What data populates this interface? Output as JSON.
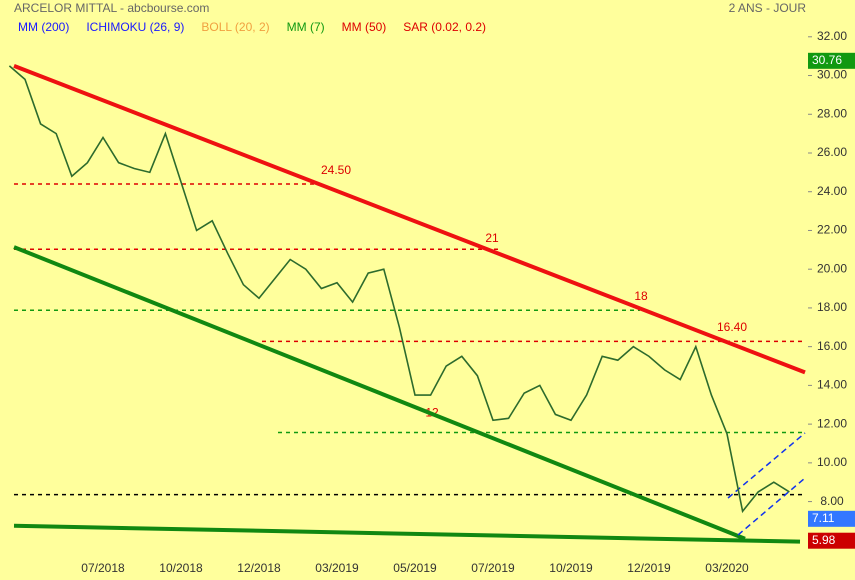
{
  "chart_data": {
    "type": "line",
    "title": "ARCELOR MITTAL - abcbourse.com",
    "period": "2 ANS - JOUR",
    "indicators": [
      {
        "name": "MM (200)",
        "color": "#1a1aff"
      },
      {
        "name": "ICHIMOKU (26, 9)",
        "color": "#1a1aff"
      },
      {
        "name": "BOLL (20, 2)",
        "color": "#f0a040"
      },
      {
        "name": "MM (7)",
        "color": "#119911"
      },
      {
        "name": "MM (50)",
        "color": "#dd0000"
      },
      {
        "name": "SAR (0.02, 0.2)",
        "color": "#dd0000"
      }
    ],
    "categories": [
      null,
      null,
      null,
      null,
      null,
      null,
      "07/2018",
      null,
      null,
      null,
      null,
      "10/2018",
      null,
      null,
      null,
      null,
      "12/2018",
      null,
      null,
      null,
      null,
      "03/2019",
      null,
      null,
      null,
      null,
      "05/2019",
      null,
      null,
      null,
      null,
      "07/2019",
      null,
      null,
      null,
      null,
      "10/2019",
      null,
      null,
      null,
      null,
      "12/2019",
      null,
      null,
      null,
      null,
      "03/2020",
      null,
      null,
      null,
      null
    ],
    "series": [
      {
        "color": "#2d6b2d",
        "values": [
          30.5,
          29.8,
          27.5,
          27.0,
          24.8,
          25.5,
          26.8,
          25.5,
          25.2,
          25.0,
          27.0,
          24.5,
          22.0,
          22.5,
          20.8,
          19.2,
          18.5,
          19.5,
          20.5,
          20.0,
          19.0,
          19.3,
          18.3,
          19.8,
          20.0,
          17.0,
          13.5,
          13.5,
          15.0,
          15.5,
          14.5,
          12.2,
          12.3,
          13.6,
          14.0,
          12.5,
          12.2,
          13.5,
          15.5,
          15.3,
          16.0,
          15.5,
          14.8,
          14.3,
          16.0,
          13.5,
          11.5,
          7.5,
          8.5,
          9.0,
          8.5
        ]
      }
    ],
    "ylim": [
      5.5,
      33.9
    ],
    "yticks": [
      {
        "value": 8,
        "label": "8.00"
      },
      {
        "value": 10,
        "label": "10.00"
      },
      {
        "value": 12,
        "label": "12.00"
      },
      {
        "value": 14,
        "label": "14.00"
      },
      {
        "value": 16,
        "label": "16.00"
      },
      {
        "value": 18,
        "label": "18.00"
      },
      {
        "value": 20,
        "label": "20.00"
      },
      {
        "value": 22,
        "label": "22.00"
      },
      {
        "value": 24,
        "label": "24.00"
      },
      {
        "value": 26,
        "label": "26.00"
      },
      {
        "value": 28,
        "label": "28.00"
      },
      {
        "value": 30,
        "label": "30.00"
      },
      {
        "value": 32,
        "label": "32.00"
      }
    ],
    "levels": [
      {
        "value": 24.4,
        "color": "#dd0000"
      },
      {
        "value": 21.03,
        "color": "#dd0000"
      },
      {
        "value": 17.88,
        "color": "#119911"
      },
      {
        "value": 16.27,
        "color": "#dd0000"
      },
      {
        "value": 11.57,
        "color": "#119911"
      },
      {
        "value": 8.36,
        "color": "#000000"
      }
    ],
    "level_labels": [
      {
        "value": 24.5,
        "label": "24.50"
      },
      {
        "value": 21,
        "label": "21"
      },
      {
        "value": 18,
        "label": "18"
      },
      {
        "value": 16.4,
        "label": "16.40"
      },
      {
        "value": 12,
        "label": "12"
      }
    ],
    "trendlines": [
      {
        "color": "#ee1111",
        "values": [
          30.5,
          14.67
        ]
      },
      {
        "color": "#118811",
        "values": [
          21.14,
          6.08
        ]
      },
      {
        "color": "#118811",
        "values": [
          6.75,
          5.93
        ]
      }
    ],
    "price_markers": [
      {
        "value": 30.76,
        "color": "#119911"
      },
      {
        "value": 7.11,
        "color": "#3377ff"
      },
      {
        "value": 5.98,
        "color": "#cc0000"
      }
    ]
  }
}
